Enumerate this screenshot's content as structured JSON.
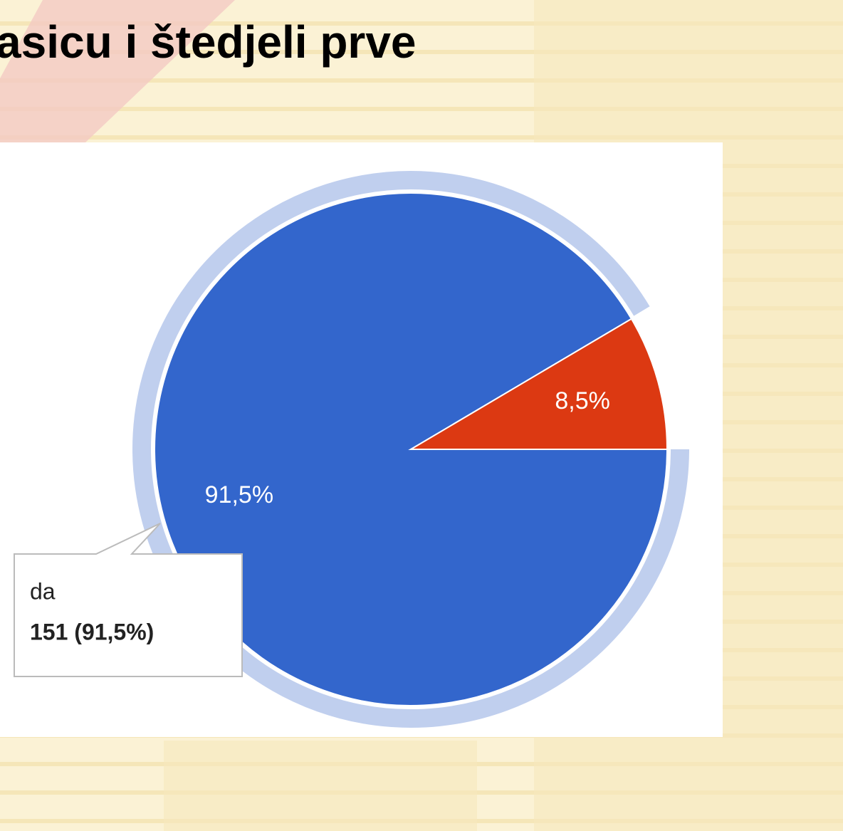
{
  "title": "asicu i štedjeli prve",
  "chart_data": {
    "type": "pie",
    "categories": [
      "da",
      null
    ],
    "values": [
      91.5,
      8.5
    ],
    "value_labels": [
      "91,5%",
      "8,5%"
    ],
    "colors": [
      "#3366cc",
      "#dc3912"
    ],
    "highlight_color": "#c0cfee",
    "tooltip": "151 (91,5%)"
  }
}
